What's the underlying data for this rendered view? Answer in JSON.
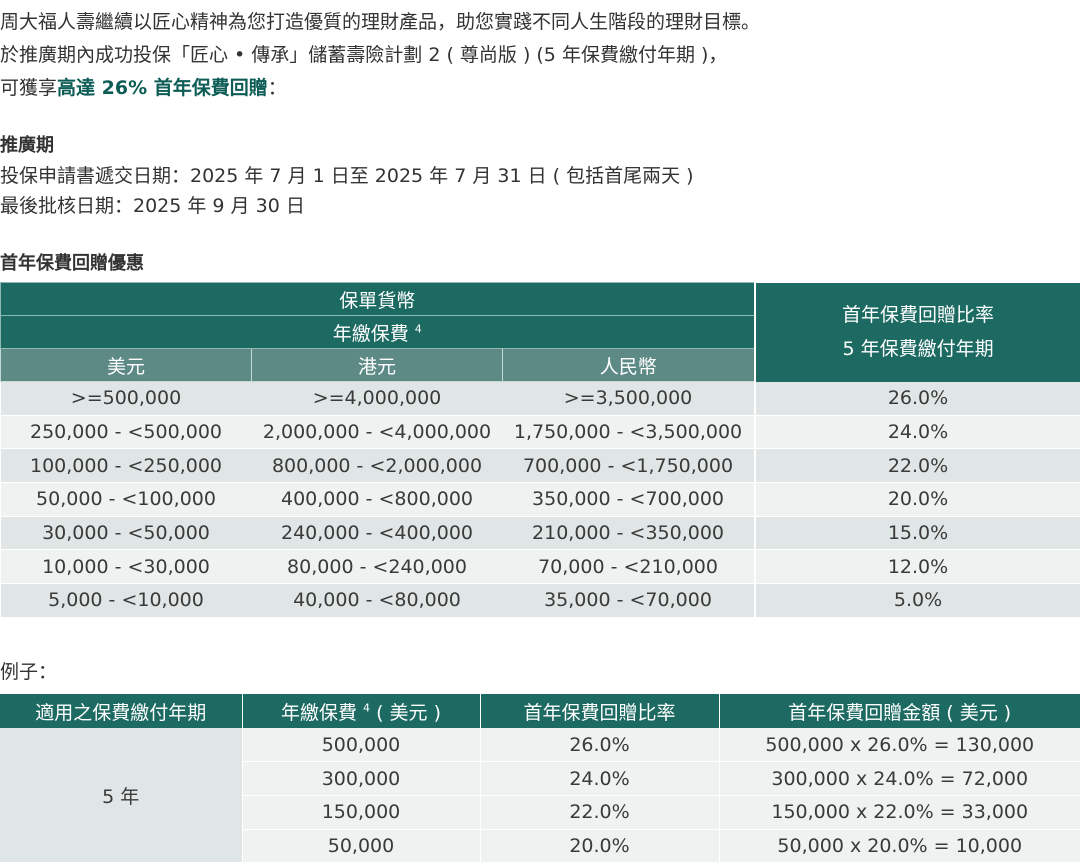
{
  "intro": {
    "line1": "周大福人壽繼續以匠心精神為您打造優質的理財產品，助您實踐不同人生階段的理財目標。",
    "line2": "於推廣期內成功投保「匠心 • 傳承」儲蓄壽險計劃 2 ( 尊尚版 ) (5 年保費繳付年期 )，",
    "line3_prefix": "可獲享",
    "line3_highlight": "高達 26% 首年保費回贈",
    "line3_suffix": "："
  },
  "promo": {
    "title": "推廣期",
    "submit_date": "投保申請書遞交日期：2025 年 7 月 1 日至 2025 年 7 月 31 日 ( 包括首尾兩天 )",
    "approval_date": "最後批核日期：2025 年 9 月 30 日"
  },
  "rebate": {
    "title": "首年保費回贈優惠",
    "header_currency": "保單貨幣",
    "header_premium": "年繳保費",
    "header_premium_sup": "4",
    "header_usd": "美元",
    "header_hkd": "港元",
    "header_rmb": "人民幣",
    "header_rate_line1": "首年保費回贈比率",
    "header_rate_line2": "5 年保費繳付年期",
    "rows": [
      {
        "usd": ">=500,000",
        "hkd": ">=4,000,000",
        "rmb": ">=3,500,000",
        "rate": "26.0%"
      },
      {
        "usd": "250,000 - <500,000",
        "hkd": "2,000,000 - <4,000,000",
        "rmb": "1,750,000 - <3,500,000",
        "rate": "24.0%"
      },
      {
        "usd": "100,000 - <250,000",
        "hkd": "800,000 - <2,000,000",
        "rmb": "700,000 - <1,750,000",
        "rate": "22.0%"
      },
      {
        "usd": "50,000 - <100,000",
        "hkd": "400,000 - <800,000",
        "rmb": "350,000 - <700,000",
        "rate": "20.0%"
      },
      {
        "usd": "30,000 - <50,000",
        "hkd": "240,000 - <400,000",
        "rmb": "210,000 - <350,000",
        "rate": "15.0%"
      },
      {
        "usd": "10,000 - <30,000",
        "hkd": "80,000 - <240,000",
        "rmb": "70,000 - <210,000",
        "rate": "12.0%"
      },
      {
        "usd": "5,000 - <10,000",
        "hkd": "40,000 - <80,000",
        "rmb": "35,000 - <70,000",
        "rate": "5.0%"
      }
    ]
  },
  "example": {
    "title": "例子：",
    "header_term": "適用之保費繳付年期",
    "header_premium": "年繳保費",
    "header_premium_sup": "4",
    "header_premium_unit": " ( 美元 )",
    "header_rate": "首年保費回贈比率",
    "header_amount": "首年保費回贈金額 ( 美元 )",
    "term": "5 年",
    "rows": [
      {
        "premium": "500,000",
        "rate": "26.0%",
        "amount": "500,000 x 26.0% = 130,000"
      },
      {
        "premium": "300,000",
        "rate": "24.0%",
        "amount": "300,000 x 24.0% = 72,000"
      },
      {
        "premium": "150,000",
        "rate": "22.0%",
        "amount": "150,000 x 22.0% = 33,000"
      },
      {
        "premium": "50,000",
        "rate": "20.0%",
        "amount": "50,000 x 20.0% = 10,000"
      }
    ]
  }
}
